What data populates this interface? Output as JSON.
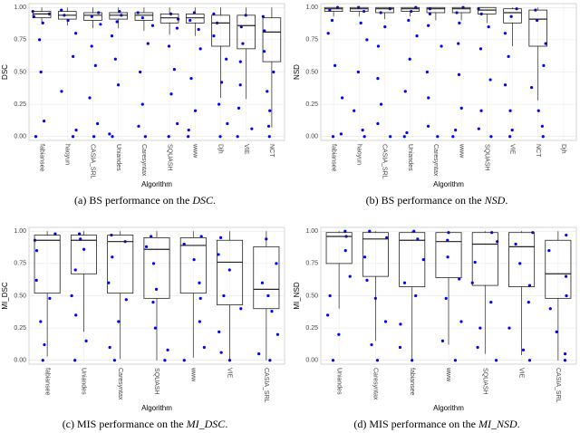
{
  "chart_data": [
    {
      "type": "box",
      "caption": [
        "(a) BS performance on the ",
        "DSC",
        "."
      ],
      "ylabel": "DSC",
      "xlabel": "Algorithm",
      "categories": [
        "fabiansee",
        "haoyun",
        "CASIA_SRL",
        "Uniandes",
        "Caresyntax",
        "SQUASH",
        "www",
        "Djh",
        "VIE",
        "NCT"
      ],
      "ylim": [
        -0.03,
        1.03
      ],
      "yticks": [
        {
          "value": 0,
          "label": "0.00"
        },
        {
          "value": 0.25,
          "label": "0.25"
        },
        {
          "value": 0.5,
          "label": "0.50"
        },
        {
          "value": 0.75,
          "label": "0.75"
        },
        {
          "value": 1,
          "label": "1.00"
        }
      ],
      "whisker_low": [
        0.87,
        0.86,
        0.84,
        0.84,
        0.82,
        0.79,
        0.78,
        0.3,
        0.29,
        0.07
      ],
      "q1": [
        0.92,
        0.91,
        0.9,
        0.91,
        0.9,
        0.88,
        0.88,
        0.7,
        0.68,
        0.58
      ],
      "median": [
        0.95,
        0.94,
        0.94,
        0.94,
        0.94,
        0.92,
        0.92,
        0.88,
        0.86,
        0.81
      ],
      "q3": [
        0.97,
        0.97,
        0.96,
        0.96,
        0.96,
        0.95,
        0.95,
        0.94,
        0.94,
        0.92
      ],
      "whisker_high": [
        1,
        1,
        1,
        1,
        1,
        1,
        1,
        1,
        1,
        1
      ],
      "points": [
        [
          0.97,
          0.95,
          0.93,
          0.88,
          0.75,
          0.5,
          0.12,
          0
        ],
        [
          0.98,
          0.94,
          0.9,
          0.8,
          0.62,
          0.35,
          0.05,
          0
        ],
        [
          0.96,
          0.93,
          0.87,
          0.7,
          0.55,
          0.3,
          0.1,
          0
        ],
        [
          0.97,
          0.94,
          0.89,
          0.78,
          0.6,
          0.4,
          0.02,
          0
        ],
        [
          0.96,
          0.92,
          0.86,
          0.72,
          0.5,
          0.25,
          0.08,
          0
        ],
        [
          0.95,
          0.91,
          0.84,
          0.7,
          0.52,
          0.33,
          0.1,
          0
        ],
        [
          0.96,
          0.9,
          0.83,
          0.68,
          0.45,
          0.2,
          0.05,
          0
        ],
        [
          0.95,
          0.88,
          0.78,
          0.6,
          0.42,
          0.25,
          0.1,
          0
        ],
        [
          0.94,
          0.85,
          0.72,
          0.58,
          0.4,
          0.22,
          0.06,
          0
        ],
        [
          0.93,
          0.82,
          0.66,
          0.5,
          0.35,
          0.2,
          0.08,
          0
        ]
      ]
    },
    {
      "type": "box",
      "caption": [
        "(b) BS performance on the ",
        "NSD",
        "."
      ],
      "ylabel": "NSD",
      "xlabel": "Algorithm",
      "categories": [
        "fabiansee",
        "haoyun",
        "CASIA_SRL",
        "Uniandes",
        "Caresyntax",
        "www",
        "SQUASH",
        "VIE",
        "NCT",
        "Djh"
      ],
      "ylim": [
        -0.03,
        1.03
      ],
      "yticks": [
        {
          "value": 0,
          "label": "0.00"
        },
        {
          "value": 0.25,
          "label": "0.25"
        },
        {
          "value": 0.5,
          "label": "0.50"
        },
        {
          "value": 0.75,
          "label": "0.75"
        },
        {
          "value": 1,
          "label": "1.00"
        }
      ],
      "whisker_low": [
        0.93,
        0.93,
        0.91,
        0.93,
        0.9,
        0.9,
        0.88,
        0.7,
        0.28,
        null
      ],
      "q1": [
        0.97,
        0.97,
        0.96,
        0.97,
        0.96,
        0.96,
        0.95,
        0.88,
        0.7,
        null
      ],
      "median": [
        0.99,
        0.99,
        0.99,
        0.99,
        0.99,
        0.99,
        0.98,
        0.96,
        0.91,
        null
      ],
      "q3": [
        1,
        1,
        1,
        1,
        1,
        1,
        1,
        0.99,
        0.98,
        null
      ],
      "whisker_high": [
        1,
        1,
        1,
        1,
        1,
        1,
        1,
        1,
        1,
        null
      ],
      "points": [
        [
          1,
          0.98,
          0.9,
          0.8,
          0.55,
          0.3,
          0.02,
          0
        ],
        [
          1,
          0.97,
          0.88,
          0.75,
          0.5,
          0.2,
          0.05,
          0
        ],
        [
          0.99,
          0.96,
          0.85,
          0.7,
          0.45,
          0.25,
          0.1,
          0
        ],
        [
          1,
          0.97,
          0.9,
          0.78,
          0.6,
          0.35,
          0.03,
          0
        ],
        [
          0.99,
          0.95,
          0.86,
          0.7,
          0.5,
          0.3,
          0.08,
          0
        ],
        [
          1,
          0.96,
          0.88,
          0.72,
          0.48,
          0.22,
          0.05,
          0
        ],
        [
          0.99,
          0.95,
          0.85,
          0.68,
          0.44,
          0.2,
          0.06,
          0
        ],
        [
          0.99,
          0.93,
          0.8,
          0.62,
          0.4,
          0.2,
          0.05,
          0
        ],
        [
          0.98,
          0.9,
          0.72,
          0.55,
          0.38,
          0.2,
          0.08,
          0
        ],
        []
      ]
    },
    {
      "type": "box",
      "caption": [
        "(c) MIS performance on the ",
        "MI_DSC",
        "."
      ],
      "ylabel": "MI_DSC",
      "xlabel": "Algorithm",
      "categories": [
        "fabiansee",
        "Uniandes",
        "Caresyntax",
        "SQUASH",
        "www",
        "VIE",
        "CASIA_SRL"
      ],
      "ylim": [
        -0.03,
        1.03
      ],
      "yticks": [
        {
          "value": 0,
          "label": "0.00"
        },
        {
          "value": 0.25,
          "label": "0.25"
        },
        {
          "value": 0.5,
          "label": "0.50"
        },
        {
          "value": 0.75,
          "label": "0.75"
        },
        {
          "value": 1,
          "label": "1.00"
        }
      ],
      "whisker_low": [
        0.03,
        0.22,
        0.01,
        0,
        0.02,
        0,
        0
      ],
      "q1": [
        0.52,
        0.67,
        0.52,
        0.48,
        0.52,
        0.43,
        0.4
      ],
      "median": [
        0.93,
        0.93,
        0.92,
        0.86,
        0.89,
        0.76,
        0.55
      ],
      "q3": [
        0.97,
        0.97,
        0.97,
        0.95,
        0.95,
        0.93,
        0.88
      ],
      "whisker_high": [
        1,
        1,
        1,
        1,
        1,
        1,
        1
      ],
      "points": [
        [
          0.98,
          0.93,
          0.85,
          0.62,
          0.48,
          0.3,
          0.12,
          0
        ],
        [
          0.98,
          0.94,
          0.86,
          0.7,
          0.5,
          0.35,
          0.15,
          0
        ],
        [
          0.97,
          0.92,
          0.8,
          0.6,
          0.47,
          0.3,
          0.1,
          0
        ],
        [
          0.96,
          0.88,
          0.75,
          0.55,
          0.45,
          0.25,
          0.08,
          0
        ],
        [
          0.96,
          0.9,
          0.78,
          0.6,
          0.48,
          0.3,
          0.1,
          0
        ],
        [
          0.95,
          0.82,
          0.7,
          0.5,
          0.4,
          0.22,
          0.06,
          0
        ],
        [
          0.94,
          0.75,
          0.6,
          0.5,
          0.38,
          0.2,
          0.05,
          0
        ]
      ]
    },
    {
      "type": "box",
      "caption": [
        "(d) MIS performance on the ",
        "MI_NSD",
        "."
      ],
      "ylabel": "MI_NSD",
      "xlabel": "Algorithm",
      "categories": [
        "Uniandes",
        "Caresyntax",
        "fabiansee",
        "www",
        "SQUASH",
        "VIE",
        "CASIA_SRL"
      ],
      "ylim": [
        -0.03,
        1.03
      ],
      "yticks": [
        {
          "value": 0,
          "label": "0.00"
        },
        {
          "value": 0.25,
          "label": "0.25"
        },
        {
          "value": 0.5,
          "label": "0.50"
        },
        {
          "value": 0.75,
          "label": "0.75"
        },
        {
          "value": 1,
          "label": "1.00"
        }
      ],
      "whisker_low": [
        0.4,
        0.15,
        0.01,
        0.12,
        0.05,
        0.04,
        0
      ],
      "q1": [
        0.75,
        0.65,
        0.57,
        0.64,
        0.58,
        0.57,
        0.48
      ],
      "median": [
        0.96,
        0.94,
        0.93,
        0.92,
        0.9,
        0.88,
        0.67
      ],
      "q3": [
        0.99,
        0.99,
        0.99,
        0.99,
        0.99,
        0.99,
        0.93
      ],
      "whisker_high": [
        1,
        1,
        1,
        1,
        1,
        1,
        1
      ],
      "points": [
        [
          1,
          0.96,
          0.85,
          0.65,
          0.5,
          0.35,
          0.2,
          0
        ],
        [
          1,
          0.95,
          0.8,
          0.62,
          0.48,
          0.3,
          0.12,
          0
        ],
        [
          1,
          0.94,
          0.78,
          0.6,
          0.5,
          0.28,
          0.1,
          0
        ],
        [
          0.99,
          0.93,
          0.8,
          0.63,
          0.48,
          0.3,
          0.15,
          0
        ],
        [
          0.99,
          0.92,
          0.76,
          0.6,
          0.45,
          0.25,
          0.1,
          0
        ],
        [
          0.99,
          0.9,
          0.75,
          0.58,
          0.45,
          0.25,
          0.08,
          0
        ],
        [
          0.97,
          0.85,
          0.65,
          0.5,
          0.4,
          0.22,
          0.05,
          0
        ]
      ]
    }
  ]
}
